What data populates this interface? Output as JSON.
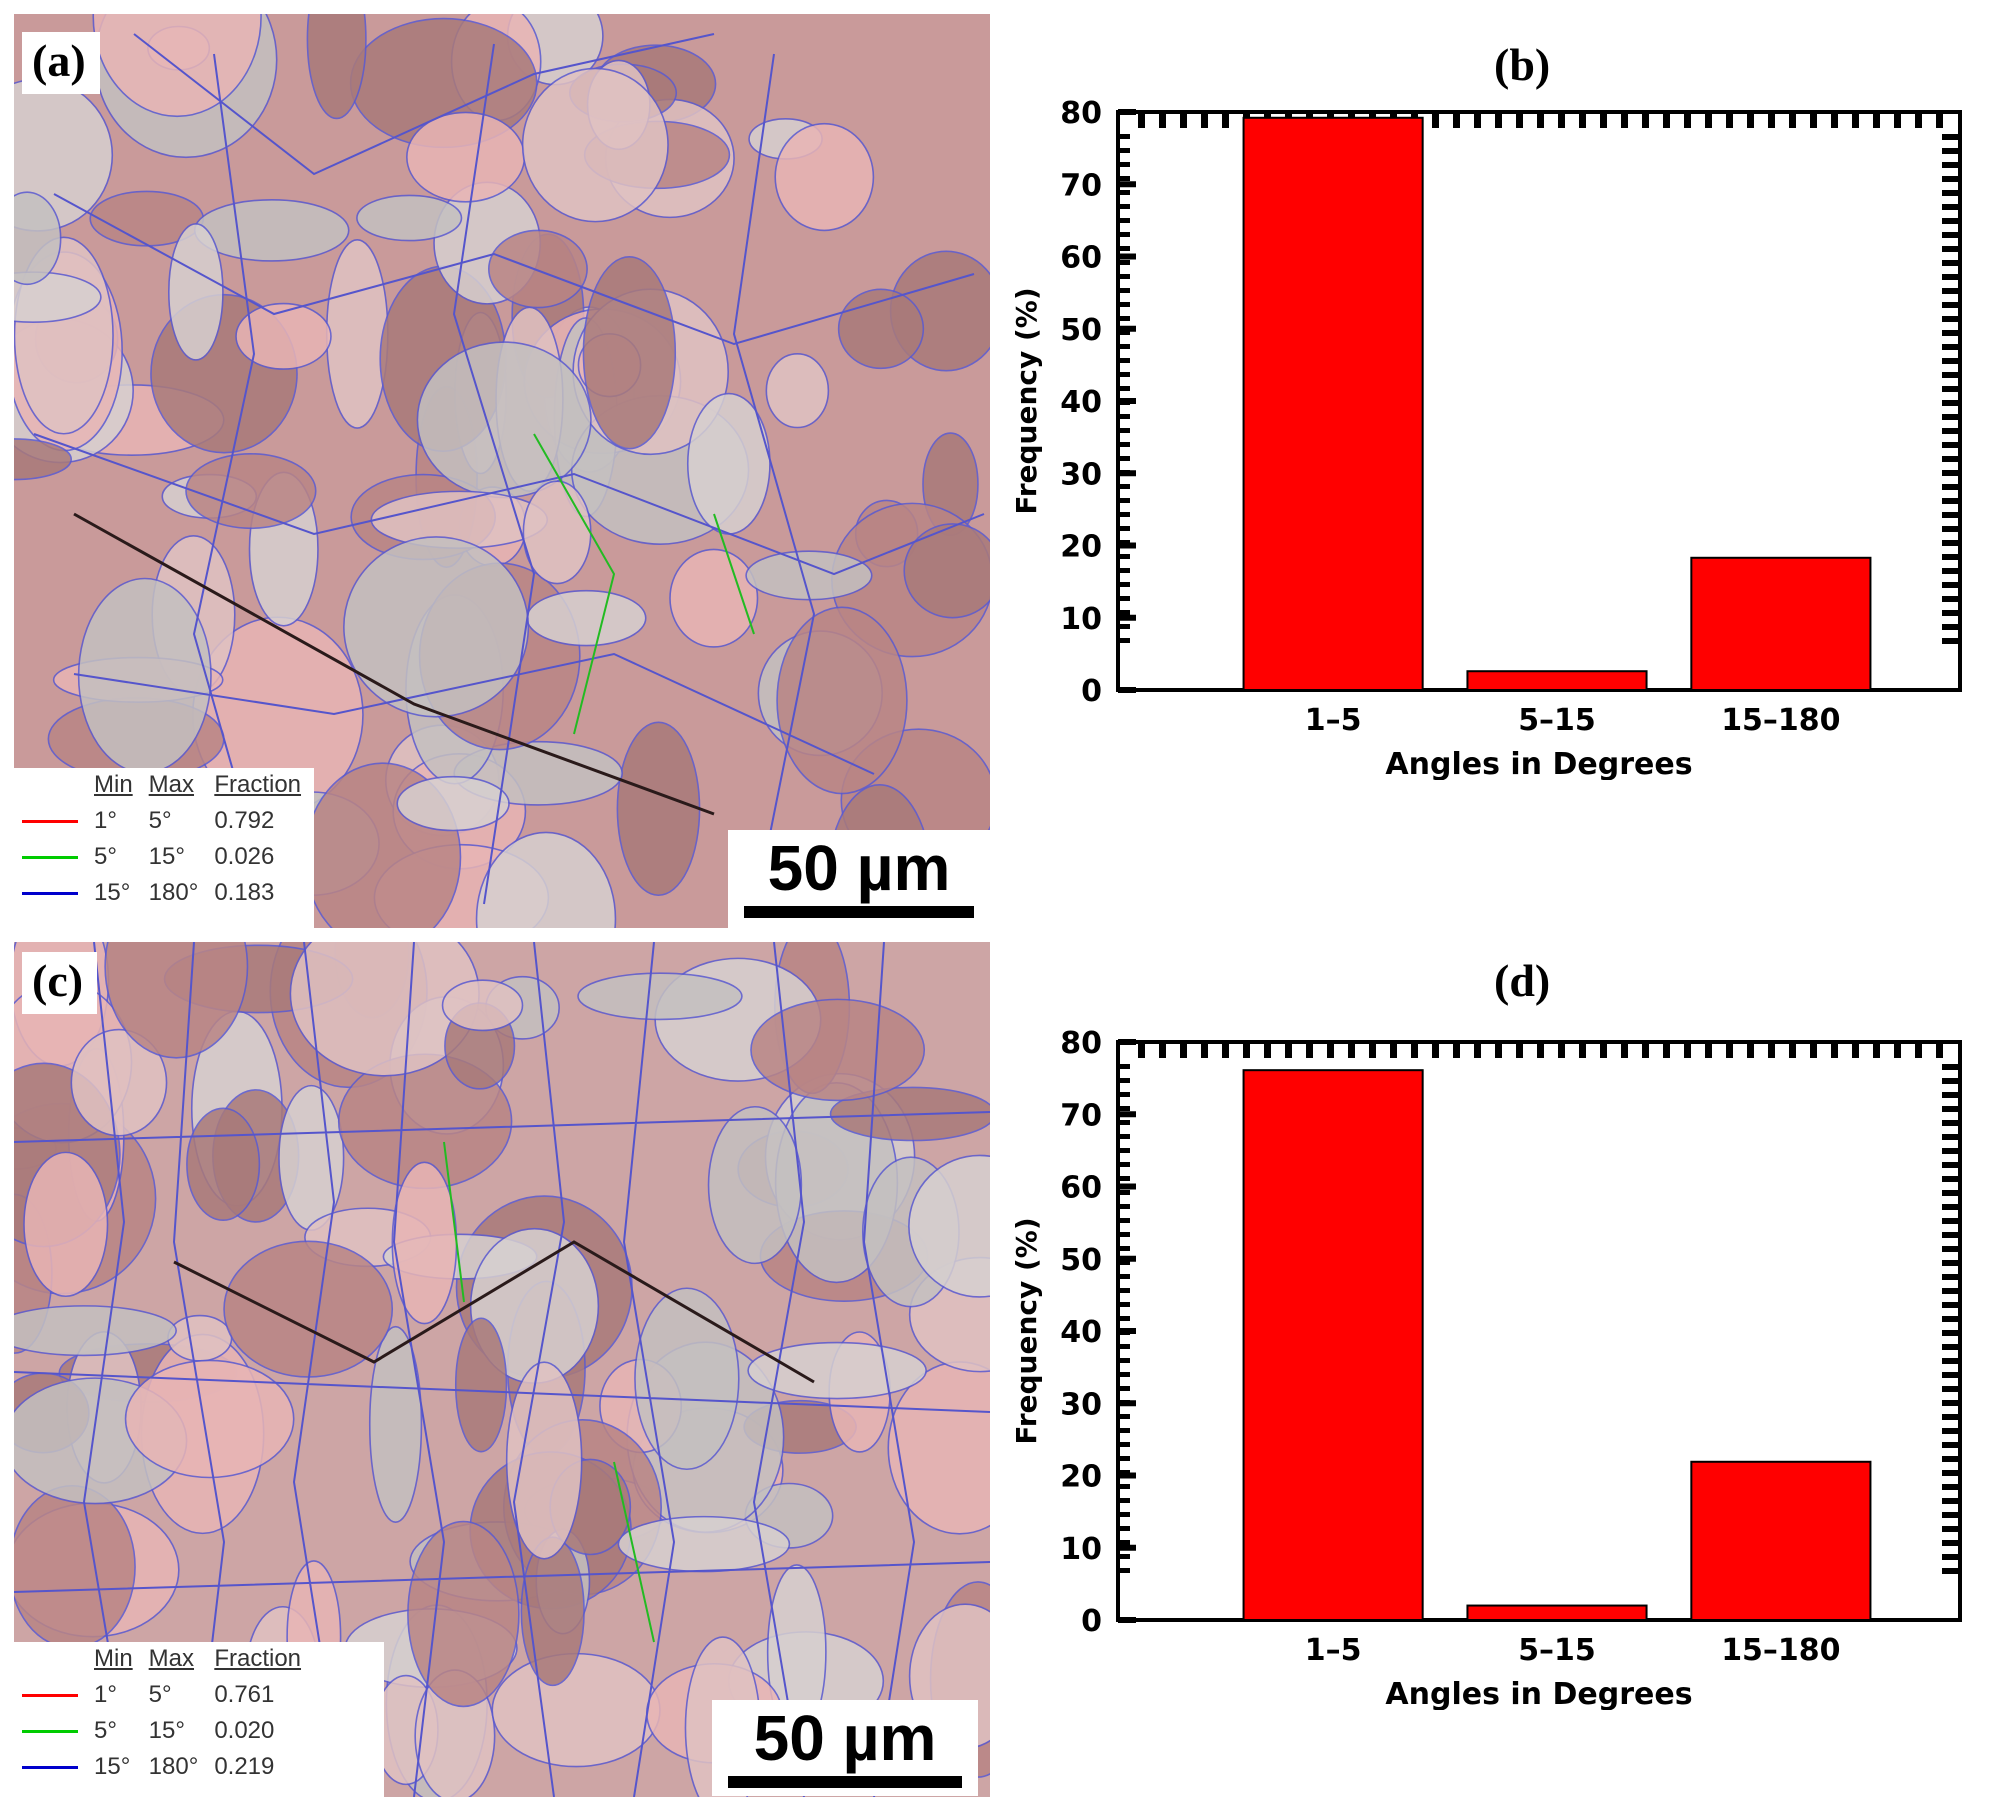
{
  "panels": {
    "a": {
      "label": "(a)"
    },
    "b": {
      "label": "(b)"
    },
    "c": {
      "label": "(c)"
    },
    "d": {
      "label": "(d)"
    }
  },
  "maps": [
    {
      "legend": {
        "headers": [
          "Min",
          "Max",
          "Fraction"
        ],
        "rows": [
          {
            "min": "1°",
            "max": "5°",
            "fraction": "0.792",
            "color": "#ff0000"
          },
          {
            "min": "5°",
            "max": "15°",
            "fraction": "0.026",
            "color": "#00cc00"
          },
          {
            "min": "15°",
            "max": "180°",
            "fraction": "0.183",
            "color": "#0000cc"
          }
        ]
      },
      "scale_bar": "50 µm"
    },
    {
      "legend": {
        "headers": [
          "Min",
          "Max",
          "Fraction"
        ],
        "rows": [
          {
            "min": "1°",
            "max": "5°",
            "fraction": "0.761",
            "color": "#ff0000"
          },
          {
            "min": "5°",
            "max": "15°",
            "fraction": "0.020",
            "color": "#00cc00"
          },
          {
            "min": "15°",
            "max": "180°",
            "fraction": "0.219",
            "color": "#0000cc"
          }
        ]
      },
      "scale_bar": "50 µm"
    }
  ],
  "chart_data": [
    {
      "type": "bar",
      "title": "",
      "categories": [
        "1–5",
        "5–15",
        "15–180"
      ],
      "values": [
        79.2,
        2.6,
        18.3
      ],
      "xlabel": "Angles in Degrees",
      "ylabel": "Frequency (%)",
      "ylim": [
        0,
        80
      ],
      "yticks": [
        0,
        10,
        20,
        30,
        40,
        50,
        60,
        70,
        80
      ],
      "bar_color": "#ff0000",
      "grid": false
    },
    {
      "type": "bar",
      "title": "",
      "categories": [
        "1–5",
        "5–15",
        "15–180"
      ],
      "values": [
        76.1,
        2.0,
        21.9
      ],
      "xlabel": "Angles in Degrees",
      "ylabel": "Frequency (%)",
      "ylim": [
        0,
        80
      ],
      "yticks": [
        0,
        10,
        20,
        30,
        40,
        50,
        60,
        70,
        80
      ],
      "bar_color": "#ff0000",
      "grid": false
    }
  ]
}
